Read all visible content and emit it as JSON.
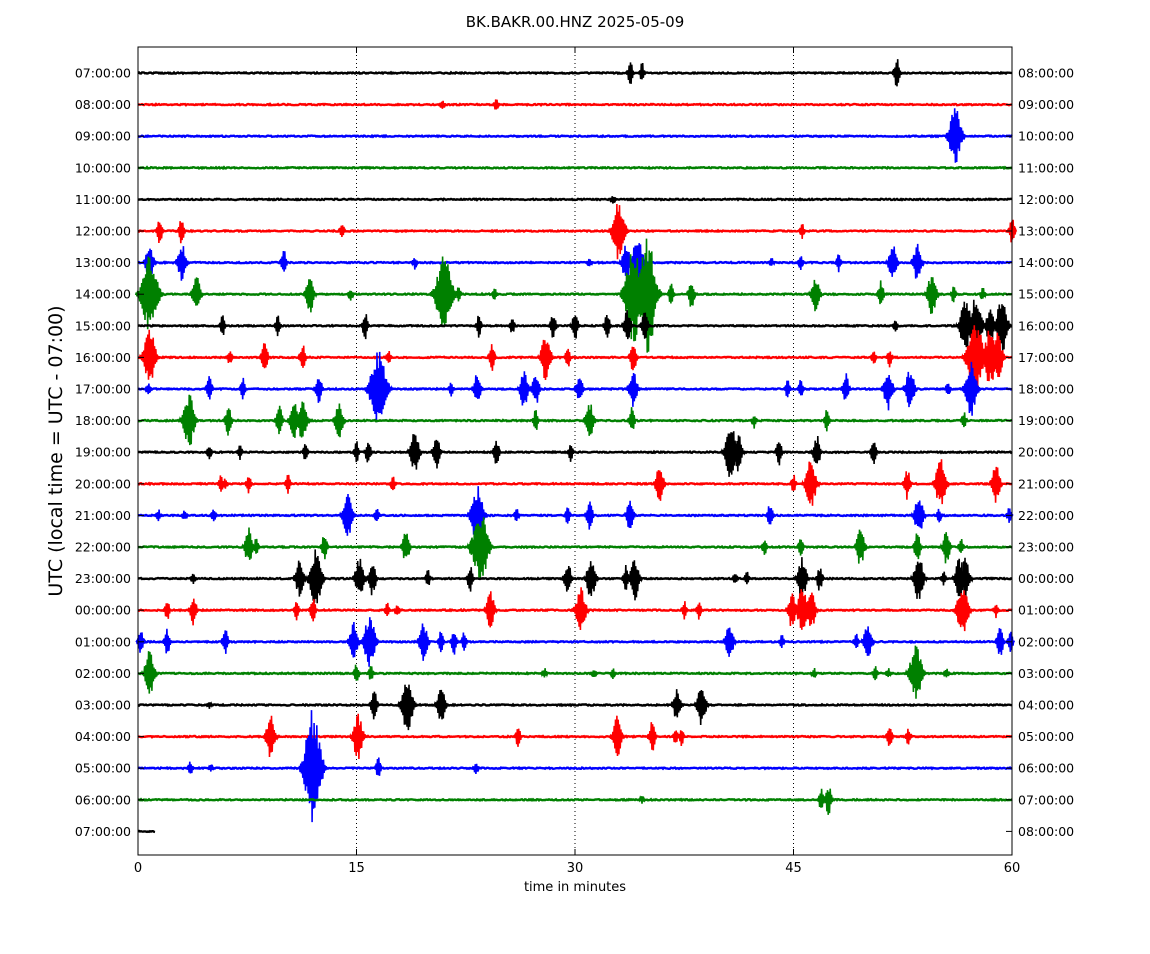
{
  "chart_data": {
    "type": "line",
    "title": "BK.BAKR.00.HNZ 2025-05-09",
    "xlabel": "time in minutes",
    "ylabel": "UTC (local time = UTC - 07:00)",
    "xlim": [
      0,
      60
    ],
    "x_ticks": [
      0,
      15,
      30,
      45,
      60
    ],
    "grid": "vertical dotted lines at 15, 30, 45",
    "trace_colors": [
      "#000000",
      "#ff0000",
      "#0000ff",
      "#008000"
    ],
    "left_labels": [
      "07:00:00",
      "08:00:00",
      "09:00:00",
      "10:00:00",
      "11:00:00",
      "12:00:00",
      "13:00:00",
      "14:00:00",
      "15:00:00",
      "16:00:00",
      "17:00:00",
      "18:00:00",
      "19:00:00",
      "20:00:00",
      "21:00:00",
      "22:00:00",
      "23:00:00",
      "00:00:00",
      "01:00:00",
      "02:00:00",
      "03:00:00",
      "04:00:00",
      "05:00:00",
      "06:00:00",
      "07:00:00"
    ],
    "right_labels": [
      "08:00:00",
      "09:00:00",
      "10:00:00",
      "11:00:00",
      "12:00:00",
      "13:00:00",
      "14:00:00",
      "15:00:00",
      "16:00:00",
      "17:00:00",
      "18:00:00",
      "19:00:00",
      "20:00:00",
      "21:00:00",
      "22:00:00",
      "23:00:00",
      "00:00:00",
      "01:00:00",
      "02:00:00",
      "03:00:00",
      "04:00:00",
      "05:00:00",
      "06:00:00",
      "07:00:00",
      "08:00:00"
    ],
    "traces": [
      {
        "end_minute": 60,
        "events": [
          [
            33.8,
            13
          ],
          [
            34.6,
            11
          ],
          [
            52.1,
            15
          ]
        ]
      },
      {
        "end_minute": 60,
        "events": [
          [
            20.9,
            5
          ],
          [
            24.6,
            7
          ]
        ]
      },
      {
        "end_minute": 60,
        "events": [
          [
            56.1,
            30
          ]
        ]
      },
      {
        "end_minute": 60,
        "events": []
      },
      {
        "end_minute": 60,
        "events": [
          [
            32.6,
            5
          ]
        ]
      },
      {
        "end_minute": 60,
        "events": [
          [
            1.5,
            14
          ],
          [
            3.0,
            14
          ],
          [
            14.0,
            10
          ],
          [
            33.0,
            30
          ],
          [
            45.6,
            8
          ],
          [
            60,
            14
          ]
        ]
      },
      {
        "end_minute": 60,
        "events": [
          [
            0.8,
            20
          ],
          [
            3.0,
            20
          ],
          [
            10.0,
            14
          ],
          [
            19.0,
            7
          ],
          [
            31.0,
            6
          ],
          [
            33.5,
            20
          ],
          [
            34.3,
            28
          ],
          [
            43.5,
            5
          ],
          [
            45.5,
            8
          ],
          [
            48.1,
            10
          ],
          [
            51.8,
            20
          ],
          [
            53.5,
            20
          ]
        ]
      },
      {
        "end_minute": 60,
        "events": [
          [
            0.8,
            40
          ],
          [
            4.0,
            20
          ],
          [
            11.8,
            20
          ],
          [
            14.6,
            7
          ],
          [
            21.0,
            40
          ],
          [
            22.0,
            8
          ],
          [
            24.5,
            7
          ],
          [
            34.0,
            50
          ],
          [
            35.0,
            60
          ],
          [
            36.6,
            12
          ],
          [
            38.0,
            15
          ],
          [
            46.5,
            20
          ],
          [
            51.0,
            14
          ],
          [
            54.5,
            22
          ],
          [
            56.0,
            10
          ],
          [
            58.0,
            7
          ]
        ]
      },
      {
        "end_minute": 60,
        "events": [
          [
            5.8,
            12
          ],
          [
            9.6,
            12
          ],
          [
            15.6,
            14
          ],
          [
            23.4,
            12
          ],
          [
            25.7,
            10
          ],
          [
            28.5,
            14
          ],
          [
            30.0,
            16
          ],
          [
            32.2,
            14
          ],
          [
            33.6,
            18
          ],
          [
            34.8,
            16
          ],
          [
            52.0,
            6
          ],
          [
            56.8,
            28
          ],
          [
            57.5,
            30
          ],
          [
            58.5,
            20
          ],
          [
            59.3,
            28
          ]
        ]
      },
      {
        "end_minute": 60,
        "events": [
          [
            0.8,
            30
          ],
          [
            6.3,
            8
          ],
          [
            8.7,
            16
          ],
          [
            11.3,
            14
          ],
          [
            17.2,
            8
          ],
          [
            24.3,
            14
          ],
          [
            28.0,
            24
          ],
          [
            29.5,
            12
          ],
          [
            34.0,
            16
          ],
          [
            50.5,
            8
          ],
          [
            51.6,
            10
          ],
          [
            57.5,
            40
          ],
          [
            58.5,
            30
          ],
          [
            59.0,
            25
          ]
        ]
      },
      {
        "end_minute": 60,
        "events": [
          [
            0.7,
            6
          ],
          [
            4.9,
            14
          ],
          [
            7.2,
            12
          ],
          [
            12.4,
            16
          ],
          [
            16.5,
            40
          ],
          [
            21.5,
            8
          ],
          [
            23.3,
            18
          ],
          [
            26.5,
            20
          ],
          [
            27.3,
            18
          ],
          [
            30.3,
            16
          ],
          [
            34.0,
            20
          ],
          [
            44.6,
            10
          ],
          [
            45.5,
            10
          ],
          [
            48.6,
            16
          ],
          [
            51.5,
            22
          ],
          [
            53.0,
            22
          ],
          [
            55.6,
            8
          ],
          [
            57.2,
            28
          ]
        ]
      },
      {
        "end_minute": 60,
        "events": [
          [
            3.5,
            28
          ],
          [
            6.2,
            16
          ],
          [
            9.7,
            16
          ],
          [
            10.7,
            20
          ],
          [
            11.3,
            22
          ],
          [
            13.8,
            20
          ],
          [
            27.3,
            12
          ],
          [
            31.0,
            20
          ],
          [
            33.9,
            14
          ],
          [
            42.3,
            8
          ],
          [
            47.3,
            12
          ],
          [
            56.7,
            10
          ]
        ]
      },
      {
        "end_minute": 60,
        "events": [
          [
            4.9,
            8
          ],
          [
            7.0,
            8
          ],
          [
            11.5,
            10
          ],
          [
            15.0,
            12
          ],
          [
            15.8,
            14
          ],
          [
            19.0,
            22
          ],
          [
            20.5,
            18
          ],
          [
            24.6,
            14
          ],
          [
            29.7,
            10
          ],
          [
            40.7,
            28
          ],
          [
            41.2,
            20
          ],
          [
            44.0,
            14
          ],
          [
            46.6,
            18
          ],
          [
            50.5,
            14
          ]
        ]
      },
      {
        "end_minute": 60,
        "events": [
          [
            5.7,
            10
          ],
          [
            6.0,
            6
          ],
          [
            7.6,
            12
          ],
          [
            10.3,
            10
          ],
          [
            17.5,
            8
          ],
          [
            35.8,
            20
          ],
          [
            45.0,
            10
          ],
          [
            46.2,
            26
          ],
          [
            52.8,
            16
          ],
          [
            55.1,
            26
          ],
          [
            58.9,
            20
          ]
        ]
      },
      {
        "end_minute": 60,
        "events": [
          [
            1.4,
            7
          ],
          [
            3.2,
            6
          ],
          [
            5.2,
            8
          ],
          [
            14.4,
            24
          ],
          [
            16.4,
            8
          ],
          [
            23.3,
            30
          ],
          [
            26.0,
            8
          ],
          [
            29.5,
            10
          ],
          [
            31.0,
            16
          ],
          [
            33.8,
            18
          ],
          [
            43.4,
            14
          ],
          [
            53.6,
            22
          ],
          [
            55.0,
            8
          ],
          [
            59.8,
            8
          ]
        ]
      },
      {
        "end_minute": 60,
        "events": [
          [
            7.6,
            20
          ],
          [
            8.1,
            10
          ],
          [
            12.8,
            14
          ],
          [
            18.4,
            18
          ],
          [
            22.9,
            12
          ],
          [
            23.5,
            38
          ],
          [
            43.0,
            10
          ],
          [
            45.5,
            12
          ],
          [
            49.6,
            20
          ],
          [
            53.5,
            16
          ],
          [
            55.5,
            18
          ],
          [
            56.5,
            10
          ]
        ]
      },
      {
        "end_minute": 60,
        "events": [
          [
            3.8,
            6
          ],
          [
            11.1,
            20
          ],
          [
            12.2,
            30
          ],
          [
            15.2,
            22
          ],
          [
            16.1,
            18
          ],
          [
            19.9,
            10
          ],
          [
            22.8,
            14
          ],
          [
            29.5,
            18
          ],
          [
            31.1,
            22
          ],
          [
            33.5,
            14
          ],
          [
            34.1,
            22
          ],
          [
            41.0,
            8
          ],
          [
            41.8,
            8
          ],
          [
            45.6,
            22
          ],
          [
            46.8,
            14
          ],
          [
            53.6,
            24
          ],
          [
            55.3,
            8
          ],
          [
            56.4,
            22
          ],
          [
            56.8,
            22
          ]
        ]
      },
      {
        "end_minute": 60,
        "events": [
          [
            2.0,
            12
          ],
          [
            3.8,
            16
          ],
          [
            10.9,
            12
          ],
          [
            12.0,
            14
          ],
          [
            17.1,
            8
          ],
          [
            17.8,
            6
          ],
          [
            24.2,
            20
          ],
          [
            30.4,
            24
          ],
          [
            37.5,
            10
          ],
          [
            38.5,
            10
          ],
          [
            44.9,
            20
          ],
          [
            45.6,
            24
          ],
          [
            46.2,
            22
          ],
          [
            56.6,
            28
          ],
          [
            58.9,
            8
          ]
        ]
      },
      {
        "end_minute": 60,
        "events": [
          [
            0.2,
            14
          ],
          [
            2.0,
            14
          ],
          [
            6.0,
            14
          ],
          [
            14.8,
            20
          ],
          [
            15.9,
            28
          ],
          [
            19.6,
            20
          ],
          [
            20.8,
            12
          ],
          [
            21.7,
            14
          ],
          [
            22.4,
            12
          ],
          [
            40.6,
            20
          ],
          [
            44.2,
            8
          ],
          [
            49.3,
            10
          ],
          [
            50.1,
            20
          ],
          [
            59.2,
            16
          ],
          [
            59.9,
            12
          ]
        ]
      },
      {
        "end_minute": 60,
        "events": [
          [
            0.8,
            24
          ],
          [
            15.0,
            12
          ],
          [
            16.0,
            10
          ],
          [
            27.9,
            6
          ],
          [
            31.3,
            6
          ],
          [
            32.6,
            6
          ],
          [
            46.4,
            6
          ],
          [
            50.6,
            8
          ],
          [
            51.5,
            6
          ],
          [
            53.4,
            30
          ],
          [
            55.5,
            6
          ]
        ]
      },
      {
        "end_minute": 60,
        "events": [
          [
            4.9,
            4
          ],
          [
            16.2,
            16
          ],
          [
            18.5,
            28
          ],
          [
            20.8,
            20
          ],
          [
            37.0,
            18
          ],
          [
            38.7,
            22
          ]
        ]
      },
      {
        "end_minute": 60,
        "events": [
          [
            9.1,
            22
          ],
          [
            15.1,
            24
          ],
          [
            26.1,
            12
          ],
          [
            32.9,
            22
          ],
          [
            35.3,
            16
          ],
          [
            36.9,
            10
          ],
          [
            37.3,
            10
          ],
          [
            51.6,
            14
          ],
          [
            52.9,
            10
          ]
        ]
      },
      {
        "end_minute": 60,
        "events": [
          [
            3.6,
            8
          ],
          [
            5.0,
            4
          ],
          [
            12.0,
            60
          ],
          [
            16.5,
            12
          ],
          [
            23.2,
            8
          ]
        ]
      },
      {
        "end_minute": 60,
        "events": [
          [
            34.6,
            4
          ],
          [
            46.9,
            12
          ],
          [
            47.4,
            16
          ]
        ]
      },
      {
        "end_minute": 1.2,
        "events": []
      }
    ]
  }
}
